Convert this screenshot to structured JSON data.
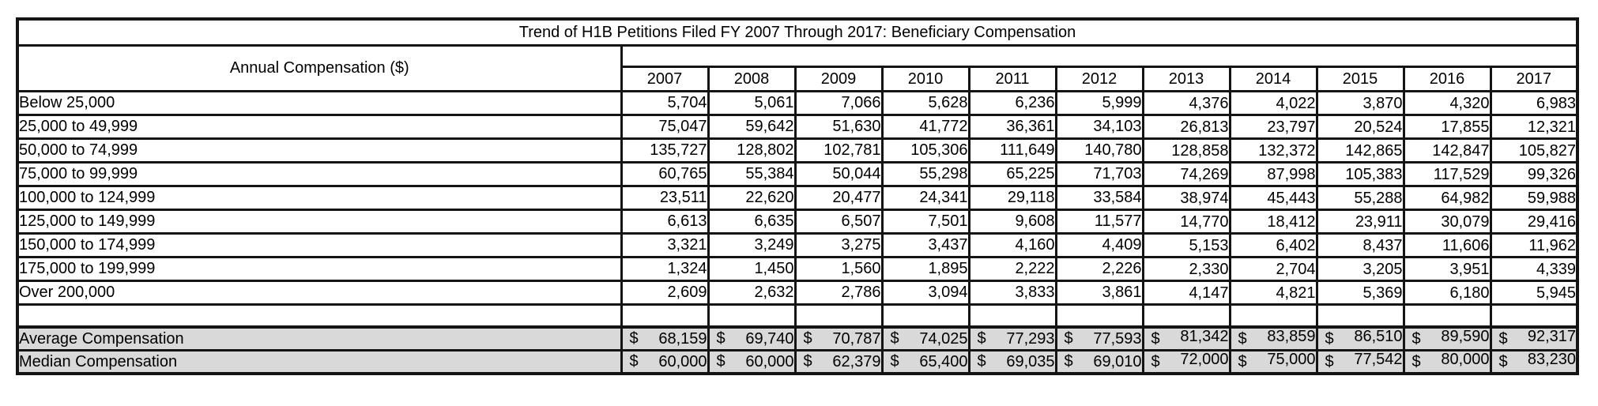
{
  "colors": {
    "page_bg": "#ffffff",
    "border": "#141414",
    "summary_row_bg": "#d9d9d9",
    "text": "#000000"
  },
  "chart_data": {
    "type": "table",
    "title": "Trend of H1B Petitions Filed FY 2007 Through 2017: Beneficiary Compensation",
    "row_header_label": "Annual Compensation ($)",
    "columns": [
      "2007",
      "2008",
      "2009",
      "2010",
      "2011",
      "2012",
      "2013",
      "2014",
      "2015",
      "2016",
      "2017"
    ],
    "rows": [
      {
        "label": "Below 25,000",
        "values": [
          "5,704",
          "5,061",
          "7,066",
          "5,628",
          "6,236",
          "5,999",
          "4,376",
          "4,022",
          "3,870",
          "4,320",
          "6,983"
        ]
      },
      {
        "label": "25,000 to 49,999",
        "values": [
          "75,047",
          "59,642",
          "51,630",
          "41,772",
          "36,361",
          "34,103",
          "26,813",
          "23,797",
          "20,524",
          "17,855",
          "12,321"
        ]
      },
      {
        "label": "50,000 to 74,999",
        "values": [
          "135,727",
          "128,802",
          "102,781",
          "105,306",
          "111,649",
          "140,780",
          "128,858",
          "132,372",
          "142,865",
          "142,847",
          "105,827"
        ]
      },
      {
        "label": "75,000 to 99,999",
        "values": [
          "60,765",
          "55,384",
          "50,044",
          "55,298",
          "65,225",
          "71,703",
          "74,269",
          "87,998",
          "105,383",
          "117,529",
          "99,326"
        ]
      },
      {
        "label": "100,000 to 124,999",
        "values": [
          "23,511",
          "22,620",
          "20,477",
          "24,341",
          "29,118",
          "33,584",
          "38,974",
          "45,443",
          "55,288",
          "64,982",
          "59,988"
        ]
      },
      {
        "label": "125,000 to 149,999",
        "values": [
          "6,613",
          "6,635",
          "6,507",
          "7,501",
          "9,608",
          "11,577",
          "14,770",
          "18,412",
          "23,911",
          "30,079",
          "29,416"
        ]
      },
      {
        "label": "150,000 to 174,999",
        "values": [
          "3,321",
          "3,249",
          "3,275",
          "3,437",
          "4,160",
          "4,409",
          "5,153",
          "6,402",
          "8,437",
          "11,606",
          "11,962"
        ]
      },
      {
        "label": "175,000 to 199,999",
        "values": [
          "1,324",
          "1,450",
          "1,560",
          "1,895",
          "2,222",
          "2,226",
          "2,330",
          "2,704",
          "3,205",
          "3,951",
          "4,339"
        ]
      },
      {
        "label": "Over 200,000",
        "values": [
          "2,609",
          "2,632",
          "2,786",
          "3,094",
          "3,833",
          "3,861",
          "4,147",
          "4,821",
          "5,369",
          "6,180",
          "5,945"
        ]
      }
    ],
    "summary_rows": [
      {
        "label": "Average Compensation",
        "prefix": "$",
        "values": [
          "68,159",
          "69,740",
          "70,787",
          "74,025",
          "77,293",
          "77,593",
          "81,342",
          "83,859",
          "86,510",
          "89,590",
          "92,317"
        ]
      },
      {
        "label": "Median Compensation",
        "prefix": "$",
        "values": [
          "60,000",
          "60,000",
          "62,379",
          "65,400",
          "69,035",
          "69,010",
          "72,000",
          "75,000",
          "77,542",
          "80,000",
          "83,230"
        ]
      }
    ]
  }
}
